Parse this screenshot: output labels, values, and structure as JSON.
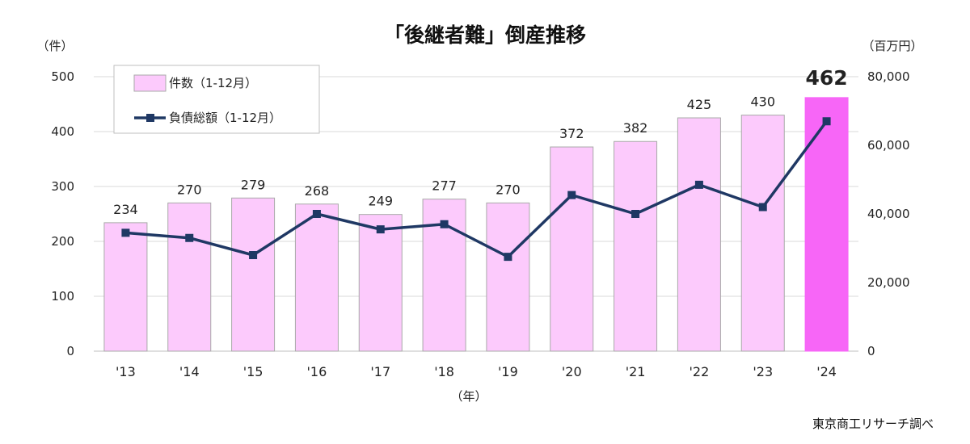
{
  "chart_data": {
    "type": "bar",
    "title": "「後継者難」倒産推移",
    "left_unit": "（件）",
    "right_unit": "（百万円）",
    "xlabel": "（年）",
    "source": "東京商工リサーチ調べ",
    "categories": [
      "'13",
      "'14",
      "'15",
      "'16",
      "'17",
      "'18",
      "'19",
      "'20",
      "'21",
      "'22",
      "'23",
      "'24"
    ],
    "series": [
      {
        "name": "件数（1-12月）",
        "type": "bar",
        "axis": "left",
        "values": [
          234,
          270,
          279,
          268,
          249,
          277,
          270,
          372,
          382,
          425,
          430,
          462
        ],
        "data_labels": [
          "234",
          "270",
          "279",
          "268",
          "249",
          "277",
          "270",
          "372",
          "382",
          "425",
          "430",
          "462"
        ]
      },
      {
        "name": "負債総額（1-12月）",
        "type": "line",
        "axis": "right",
        "values": [
          34500,
          33000,
          28000,
          40000,
          35500,
          37000,
          27500,
          45500,
          40000,
          48500,
          42000,
          67000
        ]
      }
    ],
    "y_left": {
      "lim": [
        0,
        500
      ],
      "ticks": [
        0,
        100,
        200,
        300,
        400,
        500
      ],
      "tick_labels": [
        "0",
        "100",
        "200",
        "300",
        "400",
        "500"
      ]
    },
    "y_right": {
      "lim": [
        0,
        80000
      ],
      "ticks": [
        0,
        20000,
        40000,
        60000,
        80000
      ],
      "tick_labels": [
        "0",
        "20,000",
        "40,000",
        "60,000",
        "80,000"
      ]
    },
    "grid": true,
    "legend_position": "top-left",
    "colors": {
      "bar": "#fccafc",
      "bar_border": "#a9a9a9",
      "bar_highlight": "#f766f7",
      "line": "#1f3864",
      "marker": "#1f3864",
      "grid": "#d9d9d9",
      "text": "#222222"
    },
    "highlight_index": 11
  }
}
